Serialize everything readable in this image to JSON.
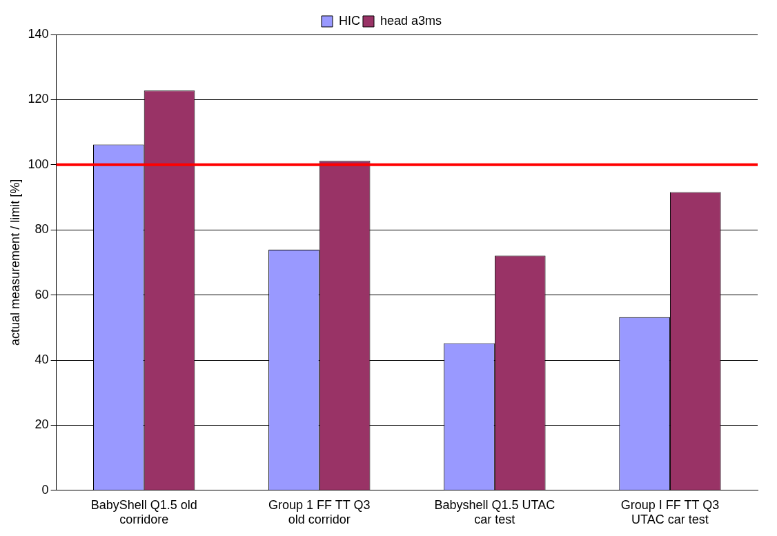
{
  "chart_data": {
    "type": "bar",
    "ylabel": "actual measurement / limit [%]",
    "categories": [
      "BabyShell Q1.5 old corridore",
      "Group 1 FF TT Q3 old corridor",
      "Babyshell Q1.5 UTAC car test",
      "Group I FF TT Q3 UTAC car test"
    ],
    "series": [
      {
        "name": "HIC",
        "color": "#9999ff",
        "values": [
          106.2,
          73.9,
          45.2,
          53.2
        ]
      },
      {
        "name": "head a3ms",
        "color": "#993366",
        "values": [
          122.8,
          101.2,
          72.1,
          91.6
        ]
      }
    ],
    "ylim": [
      0,
      140
    ],
    "yticks": [
      0,
      20,
      40,
      60,
      80,
      100,
      120,
      140
    ],
    "grid": "y",
    "legend": "top",
    "ref_lines": [
      {
        "axis": "y",
        "value": 100,
        "color": "#ff0000"
      }
    ]
  }
}
